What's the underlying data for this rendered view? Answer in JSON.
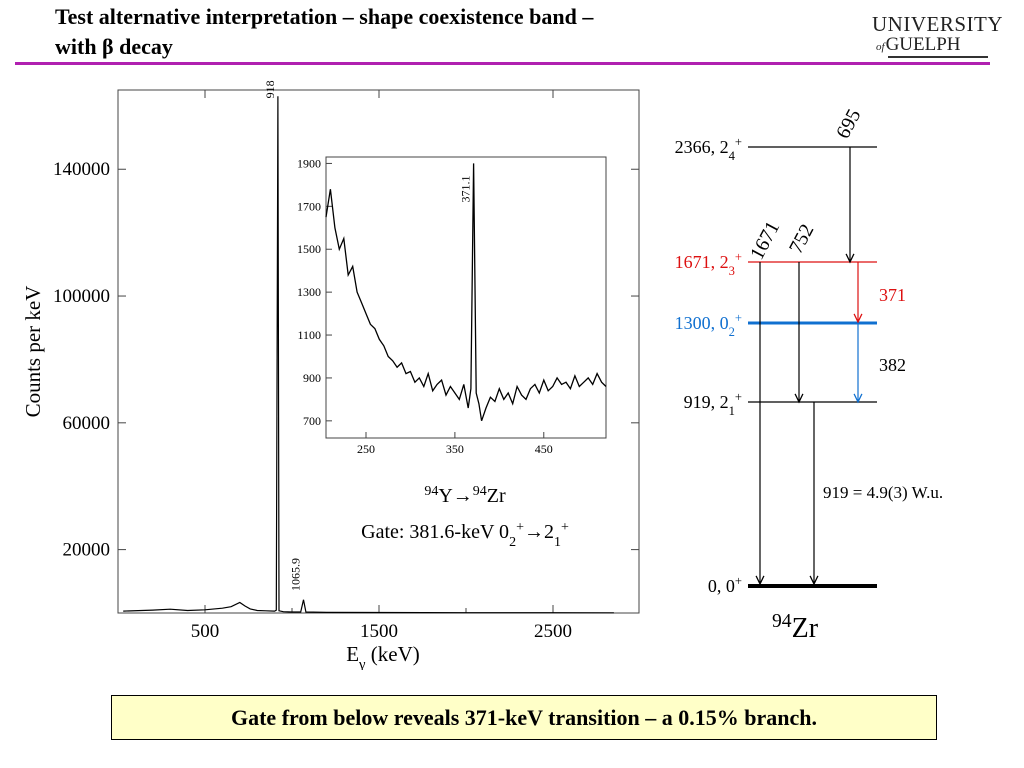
{
  "title": {
    "line1": "Test alternative interpretation – shape coexistence band –",
    "line2": "with β decay"
  },
  "logo": {
    "line1": "UNIVERSITY",
    "of": "of",
    "line2": "GUELPH"
  },
  "colors": {
    "rule": "#b020b0",
    "banner_bg": "#ffffc8",
    "red": "#dd1010",
    "blue": "#1070d0"
  },
  "chart_data": [
    {
      "type": "line",
      "xlabel": "Eγ  (keV)",
      "ylabel": "Counts per keV",
      "xlim": [
        0,
        3000
      ],
      "ylim": [
        0,
        165000
      ],
      "xticks": [
        500,
        1500,
        2500
      ],
      "yticks": [
        20000,
        60000,
        100000,
        140000
      ],
      "peak_labels": [
        {
          "label": "918.8",
          "x": 918.8,
          "y": 163000
        },
        {
          "label": "1065.9",
          "x": 1065.9,
          "y": 4500
        }
      ],
      "x": [
        30,
        200,
        300,
        400,
        500,
        600,
        650,
        700,
        730,
        760,
        800,
        850,
        900,
        910,
        918.8,
        925,
        950,
        1000,
        1050,
        1065.9,
        1080,
        1200,
        1500,
        2000,
        2500,
        2850
      ],
      "y": [
        600,
        900,
        1200,
        800,
        1000,
        1500,
        2000,
        3300,
        2200,
        1300,
        800,
        700,
        600,
        900,
        163000,
        700,
        400,
        300,
        300,
        4200,
        300,
        200,
        150,
        100,
        80,
        60
      ]
    },
    {
      "type": "line",
      "xlim": [
        205,
        520
      ],
      "ylim": [
        620,
        1930
      ],
      "xticks": [
        250,
        350,
        450
      ],
      "yticks": [
        700,
        900,
        1100,
        1300,
        1500,
        1700,
        1900
      ],
      "peak_labels": [
        {
          "label": "371.1",
          "x": 371.1,
          "y": 1895
        }
      ],
      "annotation": {
        "product": "94Y→94Zr",
        "gate": "Gate: 381.6-keV 02+→21+"
      },
      "x": [
        205,
        210,
        215,
        220,
        225,
        230,
        235,
        240,
        245,
        250,
        255,
        260,
        265,
        270,
        275,
        280,
        285,
        290,
        295,
        300,
        305,
        310,
        315,
        320,
        325,
        330,
        335,
        340,
        345,
        350,
        355,
        360,
        365,
        368,
        371,
        374,
        377,
        380,
        385,
        390,
        395,
        400,
        405,
        410,
        415,
        420,
        425,
        430,
        435,
        440,
        445,
        450,
        455,
        460,
        465,
        470,
        475,
        480,
        485,
        490,
        495,
        500,
        505,
        510,
        515,
        520
      ],
      "y": [
        1650,
        1780,
        1600,
        1500,
        1550,
        1380,
        1420,
        1300,
        1250,
        1200,
        1150,
        1130,
        1080,
        1050,
        1000,
        980,
        950,
        970,
        920,
        930,
        880,
        900,
        860,
        920,
        840,
        870,
        890,
        820,
        860,
        830,
        800,
        870,
        760,
        850,
        1900,
        830,
        780,
        700,
        760,
        810,
        790,
        850,
        800,
        830,
        780,
        860,
        820,
        800,
        850,
        870,
        830,
        890,
        840,
        860,
        900,
        870,
        880,
        850,
        910,
        860,
        880,
        900,
        870,
        920,
        880,
        860
      ]
    },
    {
      "type": "diagram",
      "nucleus": "94Zr",
      "levels": [
        {
          "label": "2366, 24+",
          "energy": 2366,
          "color": "#000000"
        },
        {
          "label": "1671, 23+",
          "energy": 1671,
          "color": "#dd1010"
        },
        {
          "label": "1300, 02+",
          "energy": 1300,
          "color": "#1070d0"
        },
        {
          "label": "919, 21+",
          "energy": 919,
          "color": "#000000"
        },
        {
          "label": "0, 0+",
          "energy": 0,
          "color": "#000000"
        }
      ],
      "transitions": [
        {
          "label": "695",
          "from": 2366,
          "to": 1671
        },
        {
          "label": "1671",
          "from": 1671,
          "to": 0
        },
        {
          "label": "752",
          "from": 1671,
          "to": 919
        },
        {
          "label": "371",
          "from": 1671,
          "to": 1300
        },
        {
          "label": "382",
          "from": 1300,
          "to": 919
        },
        {
          "label": "919 = 4.9(3) W.u.",
          "from": 919,
          "to": 0
        }
      ]
    }
  ],
  "banner": {
    "text": "Gate from below reveals 371-keV transition – a 0.15% branch."
  }
}
